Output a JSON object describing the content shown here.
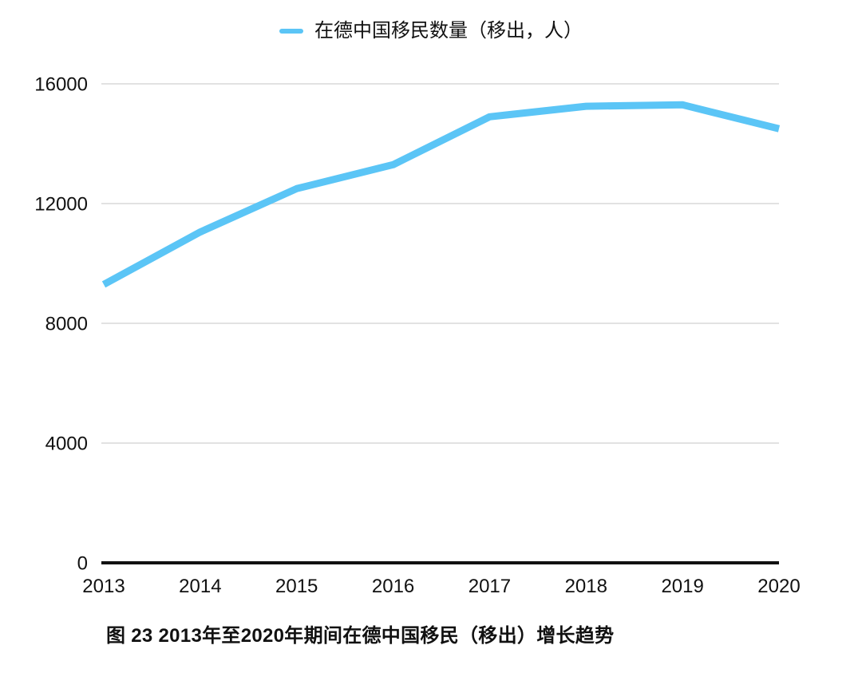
{
  "chart_data": {
    "type": "line",
    "title": "图 23 2013年至2020年期间在德中国移民（移出）增长趋势",
    "categories": [
      "2013",
      "2014",
      "2015",
      "2016",
      "2017",
      "2018",
      "2019",
      "2020"
    ],
    "series": [
      {
        "name": "在德中国移民数量（移出，人）",
        "values": [
          9300,
          11050,
          12500,
          13300,
          14900,
          15250,
          15300,
          14500
        ]
      }
    ],
    "xlabel": "",
    "ylabel": "",
    "ylim": [
      0,
      16000
    ],
    "yticks": [
      0,
      4000,
      8000,
      12000,
      16000
    ],
    "grid": "horizontal-only",
    "legend_position": "top-center",
    "colors": {
      "line": "#5BC5F6",
      "grid": "#D9D9D9",
      "axis": "#111111",
      "text": "#111111",
      "background": "#FFFFFF"
    }
  }
}
